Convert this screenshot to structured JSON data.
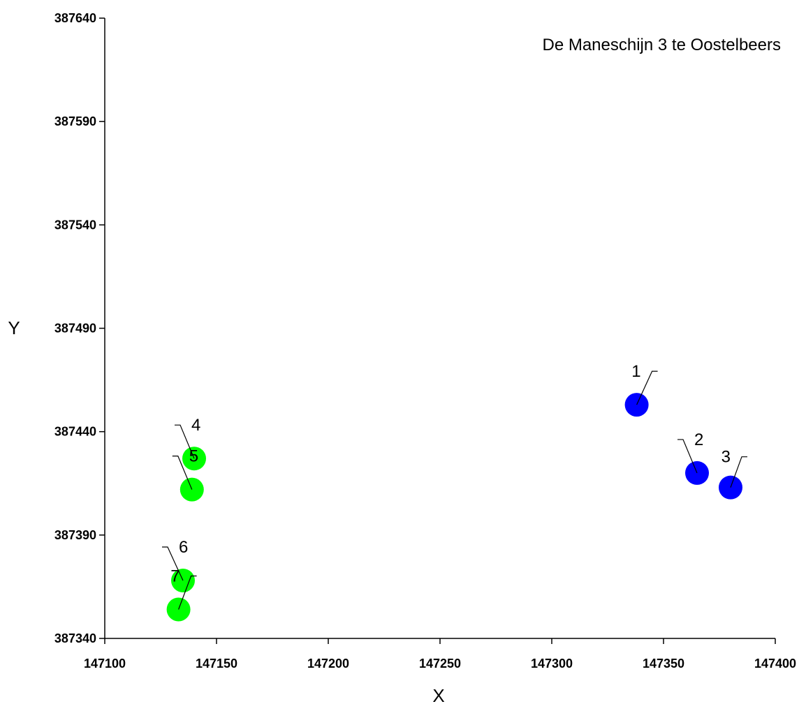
{
  "chart_data": {
    "type": "scatter",
    "title": "De Maneschijn 3 te Oostelbeers",
    "xlabel": "X",
    "ylabel": "Y",
    "xlim": [
      147100,
      147400
    ],
    "ylim": [
      387340,
      387640
    ],
    "x_ticks": [
      "147100",
      "147150",
      "147200",
      "147250",
      "147300",
      "147350",
      "147400"
    ],
    "y_ticks": [
      "387340",
      "387390",
      "387440",
      "387490",
      "387540",
      "387590",
      "387640"
    ],
    "grid": false,
    "colors": {
      "blue_points": "#0000ff",
      "green_points": "#00ff00",
      "axis": "#000000",
      "label_leader": "#000000"
    },
    "points": [
      {
        "label": "1",
        "x": 147338,
        "y": 387453,
        "color": "#0000ff"
      },
      {
        "label": "2",
        "x": 147365,
        "y": 387420,
        "color": "#0000ff"
      },
      {
        "label": "3",
        "x": 147380,
        "y": 387413,
        "color": "#0000ff"
      },
      {
        "label": "4",
        "x": 147140,
        "y": 387427,
        "color": "#00ff00"
      },
      {
        "label": "5",
        "x": 147139,
        "y": 387412,
        "color": "#00ff00"
      },
      {
        "label": "6",
        "x": 147135,
        "y": 387368,
        "color": "#00ff00"
      },
      {
        "label": "7",
        "x": 147133,
        "y": 387354,
        "color": "#00ff00"
      }
    ]
  }
}
